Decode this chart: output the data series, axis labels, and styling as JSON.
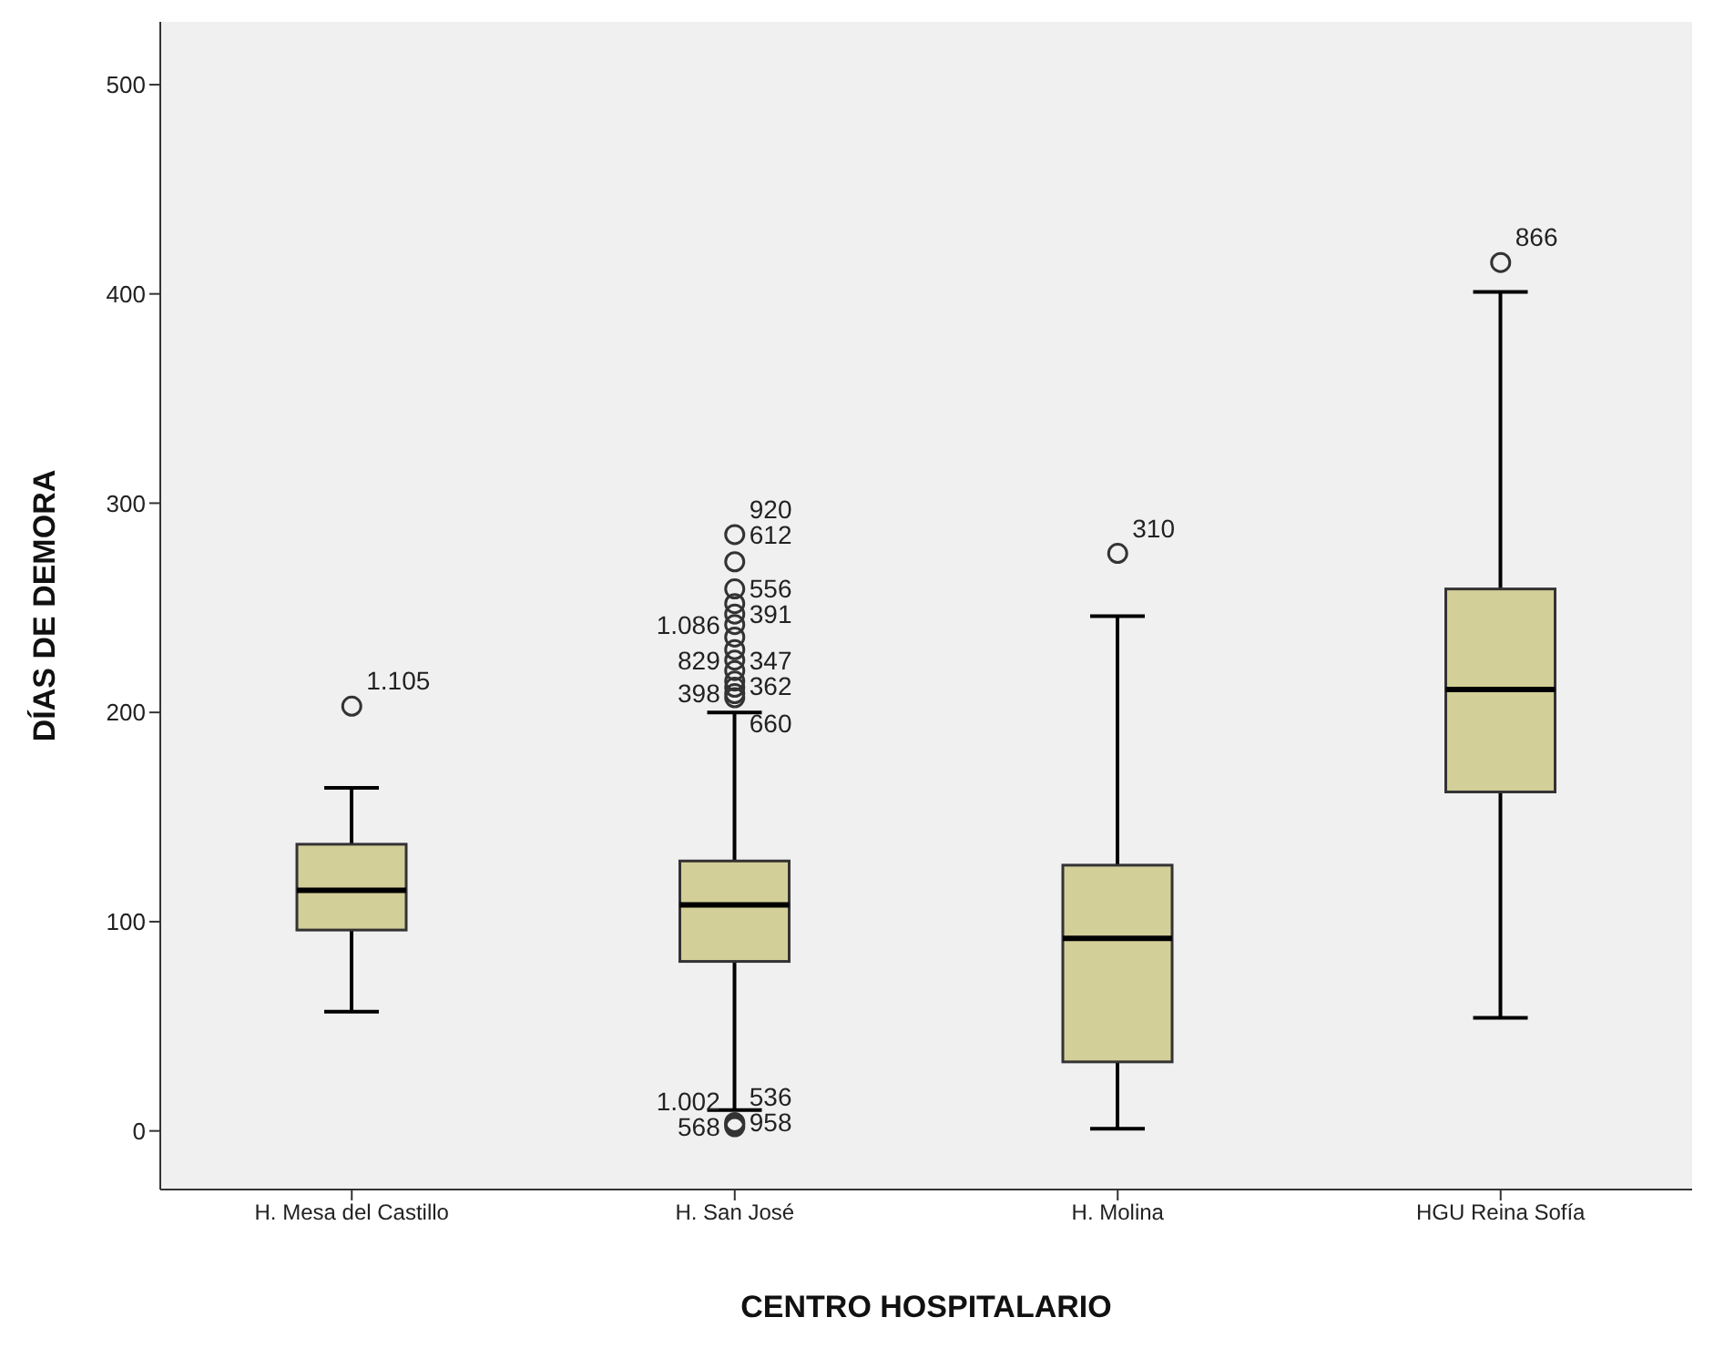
{
  "chart_data": {
    "type": "box",
    "xlabel": "CENTRO HOSPITALARIO",
    "ylabel": "DÍAS DE DEMORA",
    "categories": [
      "H. Mesa del Castillo",
      "H. San José",
      "H. Molina",
      "HGU Reina Sofía"
    ],
    "series": [
      {
        "color": "#d3cf98",
        "boxes": [
          {
            "low": 57,
            "q1": 96,
            "median": 115,
            "q3": 137,
            "high": 164
          },
          {
            "low": 10,
            "q1": 81,
            "median": 108,
            "q3": 129,
            "high": 200
          },
          {
            "low": 1,
            "q1": 33,
            "median": 92,
            "q3": 127,
            "high": 246
          },
          {
            "low": 54,
            "q1": 162,
            "median": 211,
            "q3": 259,
            "high": 401
          }
        ]
      },
      {
        "type": "scatter",
        "color": "#333333",
        "x": [
          "H. Mesa del Castillo",
          "H. San José",
          "H. San José",
          "H. San José",
          "H. San José",
          "H. San José",
          "H. San José",
          "H. San José",
          "H. San José",
          "H. San José",
          "H. San José",
          "H. San José",
          "H. San José",
          "H. San José",
          "H. San José",
          "H. San José",
          "H. San José",
          "H. San José",
          "H. Molina",
          "HGU Reina Sofía"
        ],
        "values": [
          203,
          285,
          272,
          259,
          252,
          247,
          242,
          236,
          230,
          225,
          220,
          215,
          212,
          209,
          207,
          4,
          3,
          2,
          276,
          415
        ]
      }
    ],
    "ylim": [
      -28,
      530
    ],
    "yticks": [
      0,
      100,
      200,
      300,
      400,
      500
    ],
    "grid": false,
    "legend": false,
    "marker": "circle",
    "annotations": [
      {
        "text": "1.105",
        "x": "H. Mesa del Castillo",
        "y": 203
      },
      {
        "text": "920",
        "x": "H. San José",
        "y": 285
      },
      {
        "text": "612",
        "x": "H. San José",
        "y": 285
      },
      {
        "text": "556",
        "x": "H. San José",
        "y": 247
      },
      {
        "text": "391",
        "x": "H. San José",
        "y": 247
      },
      {
        "text": "1.086",
        "x": "H. San José",
        "y": 242
      },
      {
        "text": "347",
        "x": "H. San José",
        "y": 225
      },
      {
        "text": "829",
        "x": "H. San José",
        "y": 225
      },
      {
        "text": "362",
        "x": "H. San José",
        "y": 225
      },
      {
        "text": "398",
        "x": "H. San José",
        "y": 209
      },
      {
        "text": "660",
        "x": "H. San José",
        "y": 207
      },
      {
        "text": "536",
        "x": "H. San José",
        "y": 4
      },
      {
        "text": "958",
        "x": "H. San José",
        "y": 4
      },
      {
        "text": "568",
        "x": "H. San José",
        "y": 2
      },
      {
        "text": "1.002",
        "x": "H. San José",
        "y": 2
      },
      {
        "text": "310",
        "x": "H. Molina",
        "y": 276
      },
      {
        "text": "866",
        "x": "HGU Reina Sofía",
        "y": 415
      }
    ]
  }
}
